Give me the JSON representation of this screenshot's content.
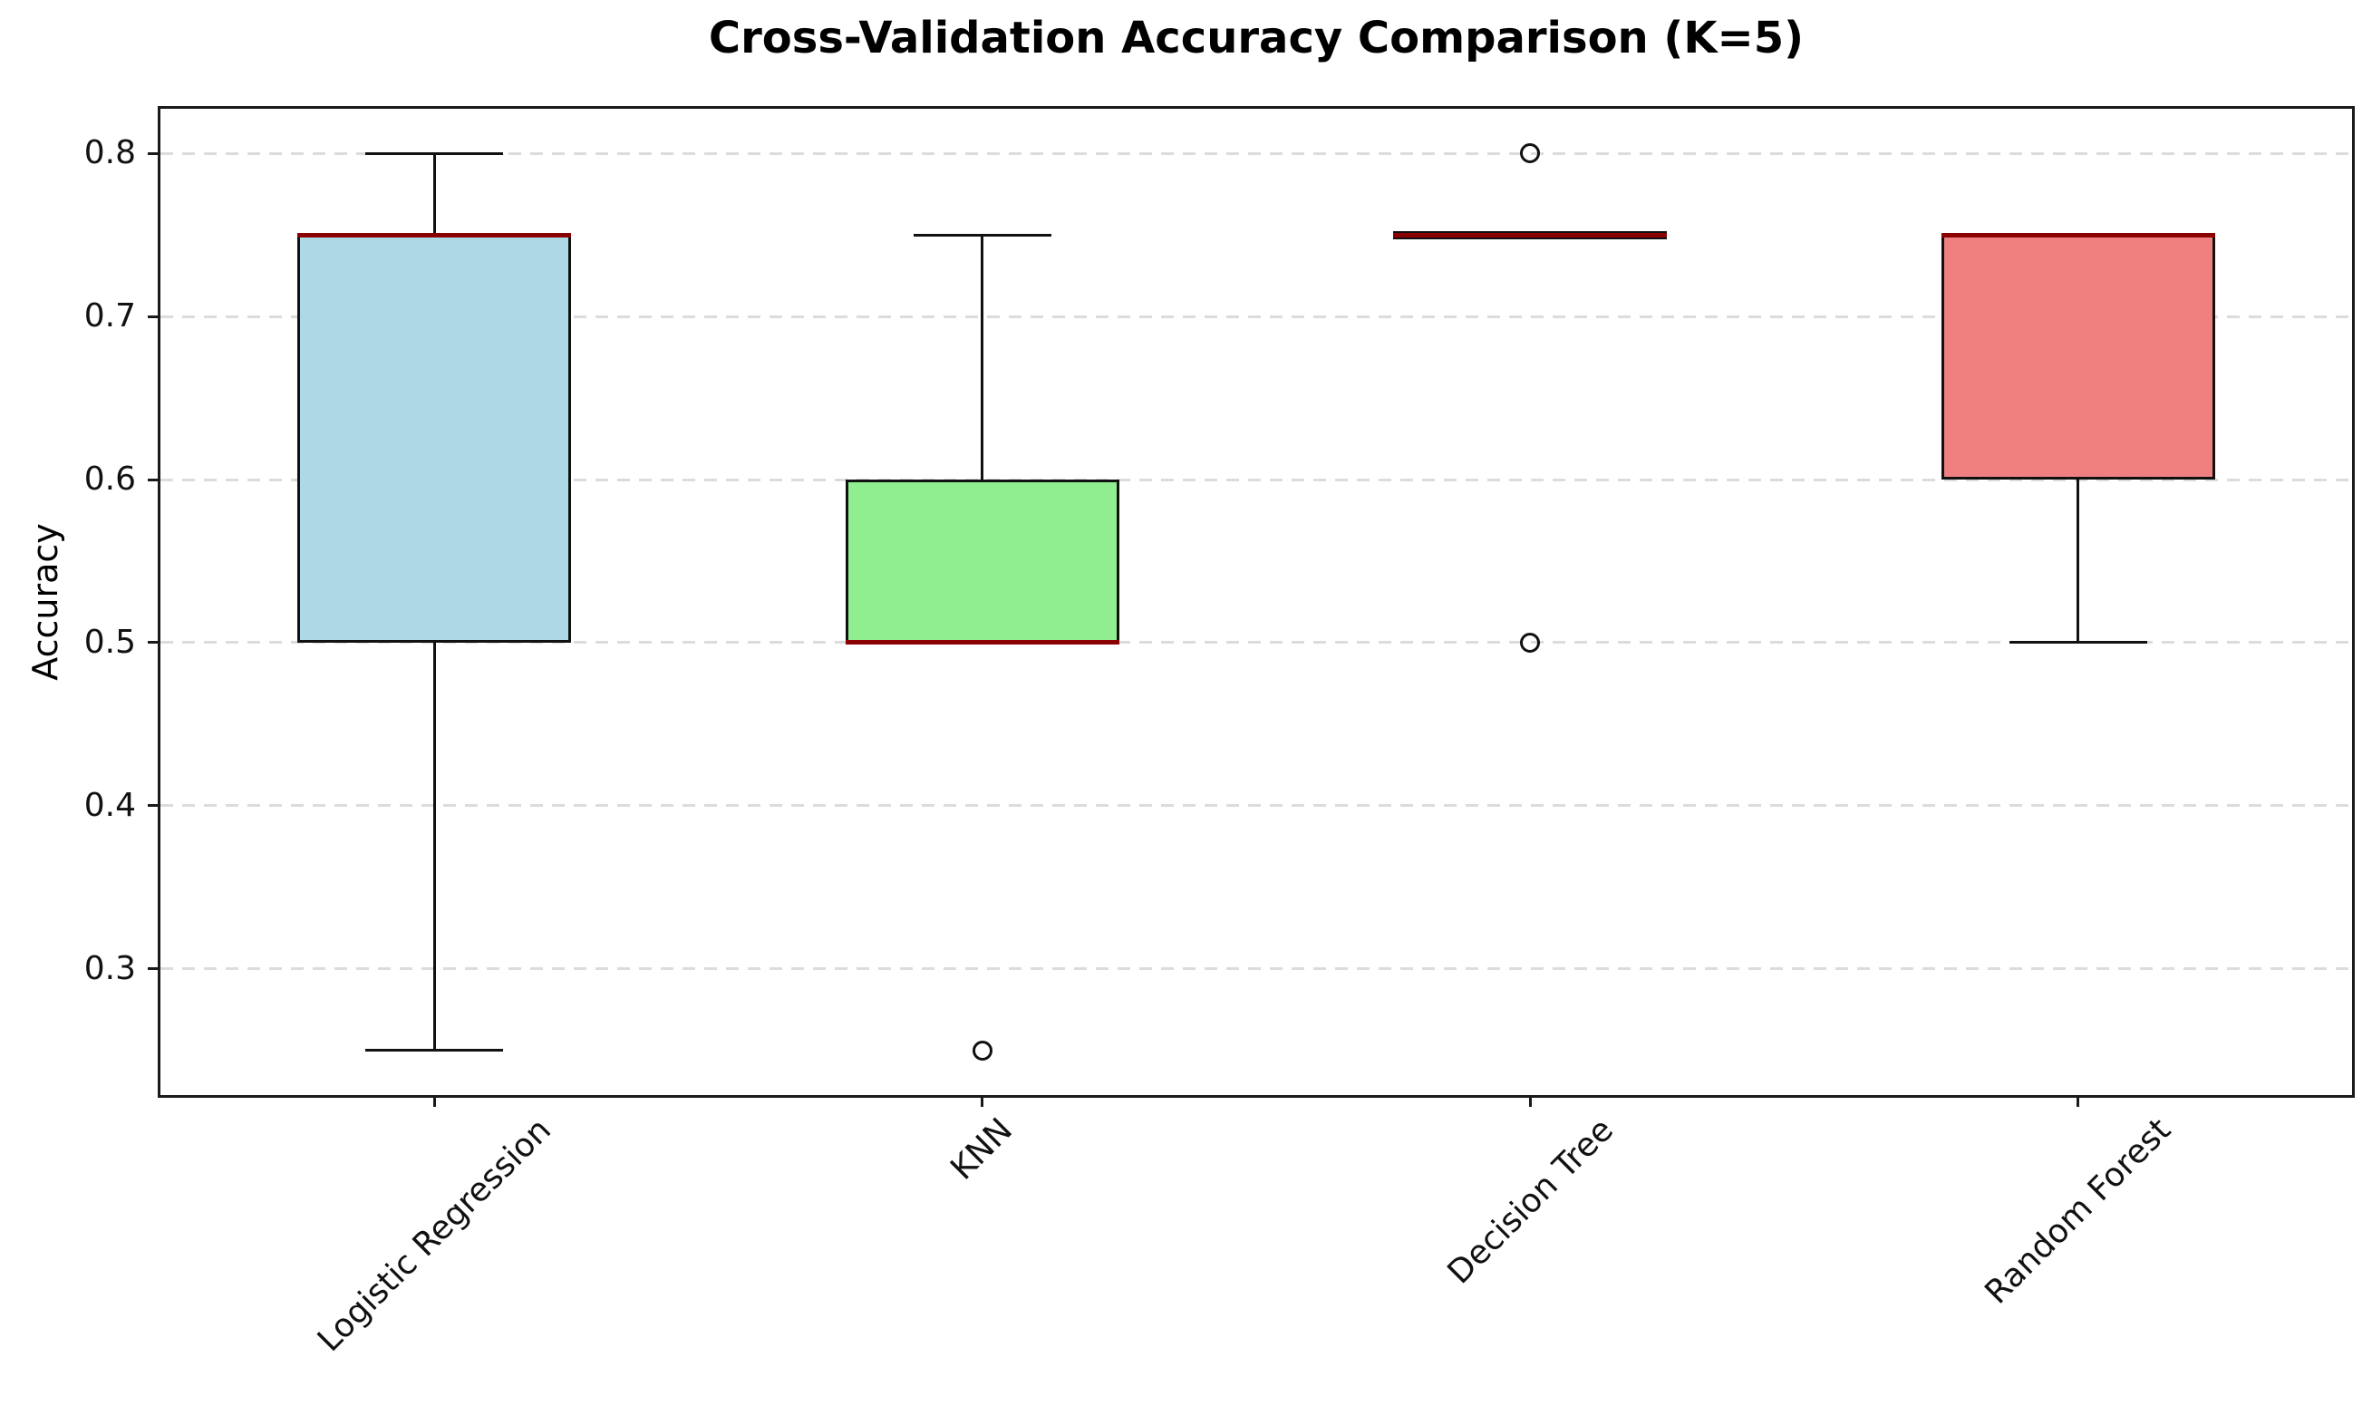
{
  "figure": {
    "title": "Cross-Validation Accuracy Comparison (K=5)"
  },
  "chart_data": {
    "type": "boxplot",
    "title": "Cross-Validation Accuracy Comparison (K=5)",
    "xlabel": "",
    "ylabel": "Accuracy",
    "ylim": [
      0.2225,
      0.8275
    ],
    "yticks": [
      0.3,
      0.4,
      0.5,
      0.6,
      0.7,
      0.8
    ],
    "grid": {
      "axis": "y",
      "linestyle": "dashed",
      "color": "#dcdcdc"
    },
    "legend": "none",
    "categories": [
      "Logistic Regression",
      "KNN",
      "Decision Tree",
      "Random Forest"
    ],
    "boxes": [
      {
        "label": "Logistic Regression",
        "fill": "#ADD8E6",
        "whisker_low": 0.25,
        "q1": 0.5,
        "median": 0.75,
        "q3": 0.75,
        "whisker_high": 0.8,
        "outliers": []
      },
      {
        "label": "KNN",
        "fill": "#90EE90",
        "whisker_low": 0.5,
        "q1": 0.5,
        "median": 0.5,
        "q3": 0.6,
        "whisker_high": 0.75,
        "outliers": [
          0.25
        ]
      },
      {
        "label": "Decision Tree",
        "fill": null,
        "whisker_low": 0.75,
        "q1": 0.75,
        "median": 0.75,
        "q3": 0.75,
        "whisker_high": 0.75,
        "outliers": [
          0.8,
          0.5
        ]
      },
      {
        "label": "Random Forest",
        "fill": "#F08080",
        "whisker_low": 0.5,
        "q1": 0.6,
        "median": 0.75,
        "q3": 0.75,
        "whisker_high": 0.75,
        "outliers": []
      }
    ],
    "style": {
      "median_color": "#8B0000",
      "edge_color": "#111111",
      "background": "#FFFFFF",
      "gridline_color": "#dcdcdc"
    }
  }
}
